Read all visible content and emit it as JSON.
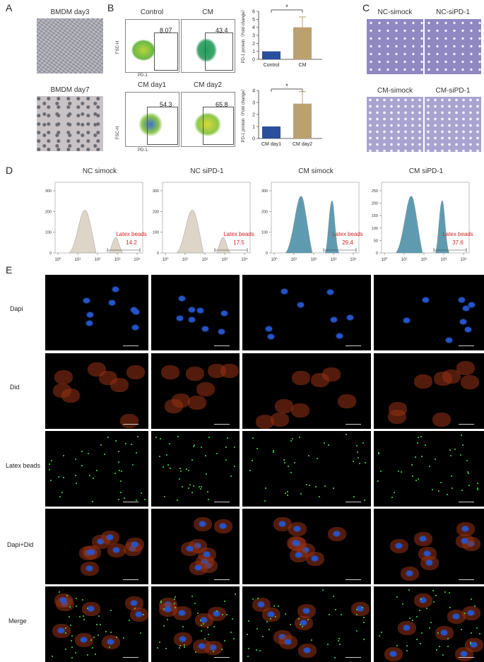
{
  "panels": {
    "A": "A",
    "B": "B",
    "C": "C",
    "D": "D",
    "E": "E"
  },
  "panelA": {
    "top_title": "BMDM day3",
    "bottom_title": "BMDM day7"
  },
  "panelB": {
    "flow": [
      {
        "title": "Control",
        "value": "8.07"
      },
      {
        "title": "CM",
        "value": "43.4"
      },
      {
        "title": "CM day1",
        "value": "54.3"
      },
      {
        "title": "CM day2",
        "value": "65.8"
      }
    ],
    "y_axis": "FSC-H",
    "x_axis": "PD-1"
  },
  "panelC": {
    "titles": [
      "NC-simock",
      "NC-siPD-1",
      "CM-simock",
      "CM-siPD-1"
    ]
  },
  "panelD": {
    "titles": [
      "NC simock",
      "NC siPD-1",
      "CM simock",
      "CM siPD-1"
    ],
    "gate_label": "Latex beads",
    "values": [
      "14.2",
      "17.5",
      "29.4",
      "37.6"
    ],
    "x_ticks": [
      "10⁰",
      "10¹",
      "10²",
      "10³",
      "10⁴"
    ],
    "y_ticks": [
      [
        "0",
        "100",
        "200",
        "300"
      ],
      [
        "0",
        "100",
        "200",
        "300"
      ],
      [
        "0",
        "100",
        "200",
        "300"
      ],
      [
        "0",
        "50",
        "100",
        "150",
        "200",
        "250"
      ]
    ]
  },
  "panelE": {
    "rows": [
      "Dapi",
      "Did",
      "Latex beads",
      "Dapi+Did",
      "Merge"
    ]
  },
  "chart_data": [
    {
      "type": "bar",
      "categories": [
        "Control",
        "CM"
      ],
      "values": [
        1,
        4
      ],
      "error": [
        0,
        1.3
      ],
      "ylabel": "PD-1 protein（Fold change）",
      "ylim": [
        0,
        6
      ],
      "yticks": [
        0,
        1,
        2,
        3,
        4,
        5,
        6
      ],
      "significance": "*"
    },
    {
      "type": "bar",
      "categories": [
        "CM day1",
        "CM day2"
      ],
      "values": [
        1,
        2.9
      ],
      "error": [
        0,
        1.0
      ],
      "ylabel": "PD-1 protein（Fold change）",
      "ylim": [
        0,
        4
      ],
      "yticks": [
        0,
        1,
        2,
        3,
        4
      ],
      "significance": "*"
    }
  ],
  "colors": {
    "bar1": "#2a4f9c",
    "bar2": "#bba070",
    "hist_nc": "#ddd6c8",
    "hist_cm": "#5e9bb0",
    "gate_text": "#d62424"
  }
}
